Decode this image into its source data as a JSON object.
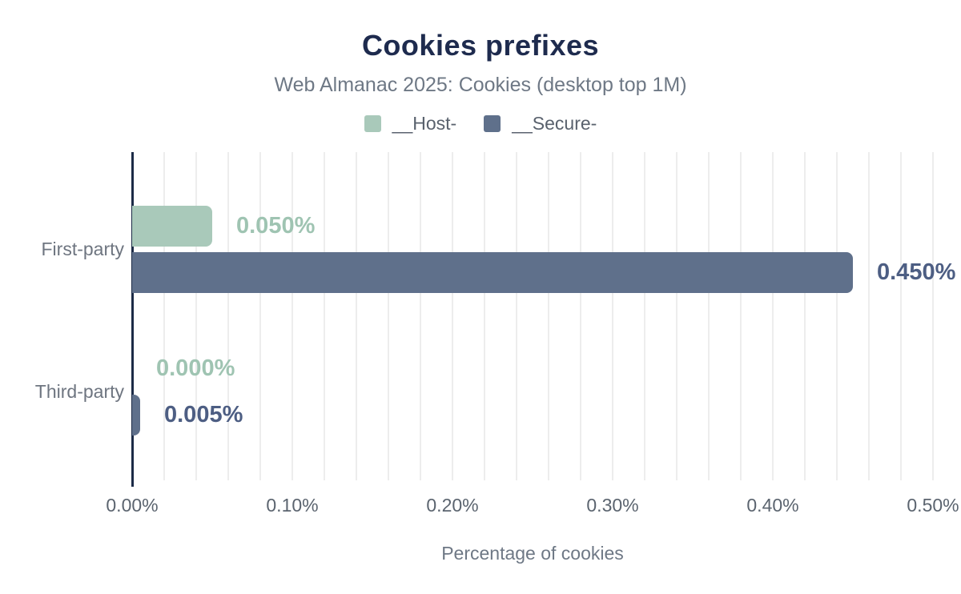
{
  "header": {
    "title": "Cookies prefixes",
    "subtitle": "Web Almanac 2025: Cookies (desktop top 1M)"
  },
  "chart_data": {
    "type": "bar",
    "orientation": "horizontal",
    "title": "Cookies prefixes",
    "subtitle": "Web Almanac 2025: Cookies (desktop top 1M)",
    "categories": [
      "First-party",
      "Third-party"
    ],
    "series": [
      {
        "name": "__Host-",
        "color": "#a9c9ba",
        "label_color": "#9fc4b2",
        "values": [
          0.05,
          0.0
        ],
        "value_labels": [
          "0.050%",
          "0.000%"
        ]
      },
      {
        "name": "__Secure-",
        "color": "#5f708b",
        "label_color": "#4d5e83",
        "values": [
          0.45,
          0.005
        ],
        "value_labels": [
          "0.450%",
          "0.005%"
        ]
      }
    ],
    "xlabel": "Percentage of cookies",
    "ylabel": "",
    "xlim": [
      0,
      0.5
    ],
    "x_ticks": [
      {
        "value": 0.0,
        "label": "0.00%"
      },
      {
        "value": 0.1,
        "label": "0.10%"
      },
      {
        "value": 0.2,
        "label": "0.20%"
      },
      {
        "value": 0.3,
        "label": "0.30%"
      },
      {
        "value": 0.4,
        "label": "0.40%"
      },
      {
        "value": 0.5,
        "label": "0.50%"
      }
    ],
    "gridline_step": 0.02,
    "grid": true,
    "legend_position": "top",
    "colors": {
      "title": "#1e2b4e",
      "subtitle": "#6e7885",
      "axis_line": "#1c2b47",
      "gridline": "#ededed",
      "tick_label": "#5b646f",
      "category_label": "#6e7580"
    }
  }
}
